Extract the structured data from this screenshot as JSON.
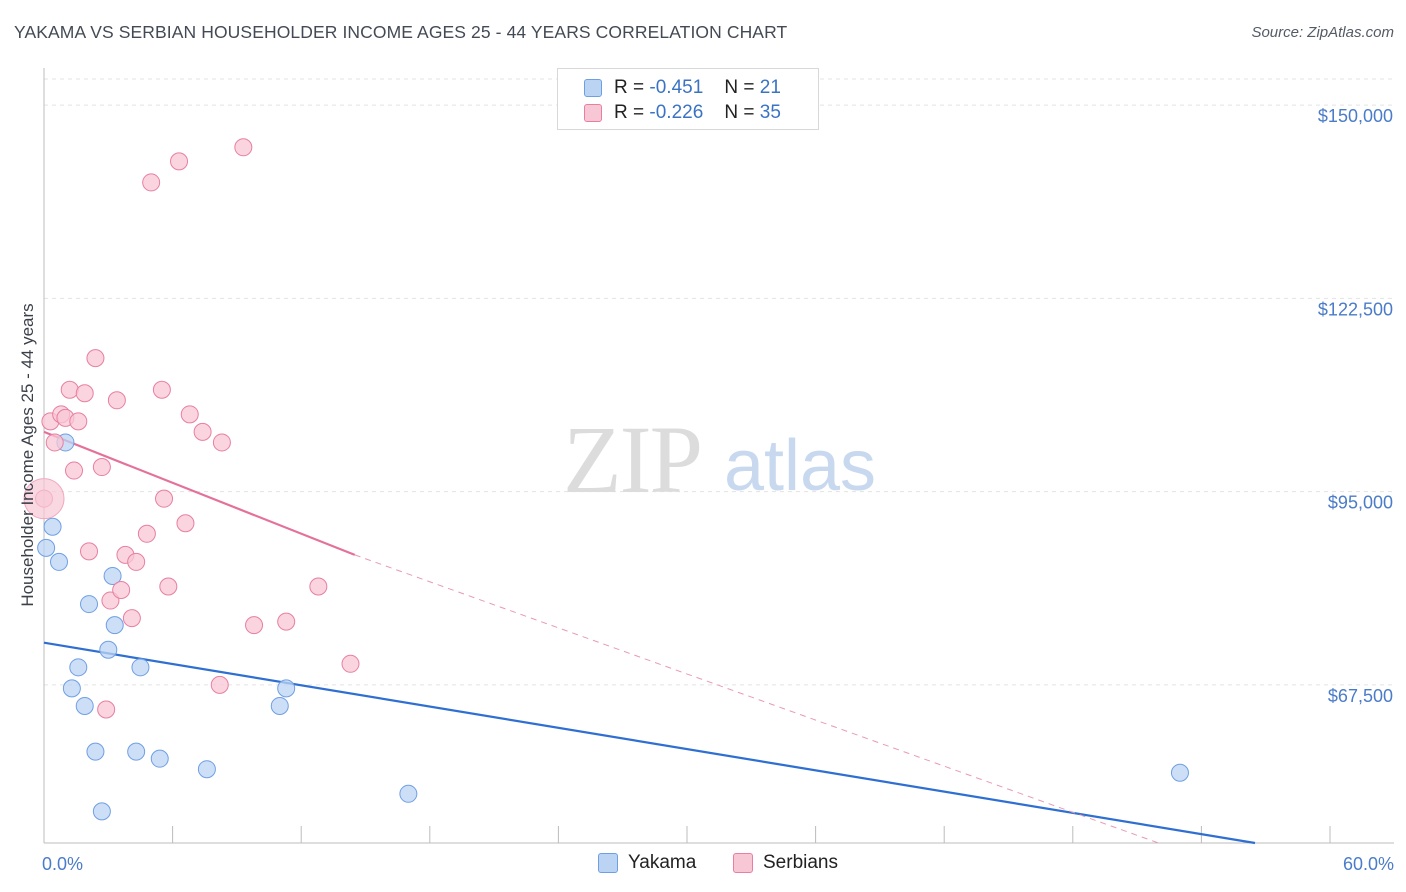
{
  "title": "YAKAMA VS SERBIAN HOUSEHOLDER INCOME AGES 25 - 44 YEARS CORRELATION CHART",
  "source": "Source: ZipAtlas.com",
  "watermark": {
    "zip": "ZIP",
    "atlas": "atlas"
  },
  "legend": {
    "rows": [
      {
        "r_label": "R =",
        "r_value": "-0.451",
        "n_label": "N =",
        "n_value": "21",
        "color": "#a9c8f2"
      },
      {
        "r_label": "R =",
        "r_value": "-0.226",
        "n_label": "N =",
        "n_value": "35",
        "color": "#f5b8cb"
      }
    ]
  },
  "chart_data": {
    "type": "scatter",
    "title": "YAKAMA VS SERBIAN HOUSEHOLDER INCOME AGES 25 - 44 YEARS CORRELATION CHART",
    "xlabel": "",
    "ylabel": "Householder Income Ages 25 - 44 years",
    "xlim": [
      0,
      60
    ],
    "ylim": [
      45000,
      155000
    ],
    "x_tick_labels": [
      "0.0%",
      "60.0%"
    ],
    "y_ticks": [
      67500,
      95000,
      122500,
      150000
    ],
    "y_tick_labels": [
      "$67,500",
      "$95,000",
      "$122,500",
      "$150,000"
    ],
    "grid": "horizontal-dashed",
    "series": [
      {
        "name": "Yakama",
        "color": "#6f9fe3",
        "fill": "#bcd4f4",
        "points": [
          [
            0.1,
            87000
          ],
          [
            0.4,
            90000
          ],
          [
            0.7,
            85000
          ],
          [
            1.0,
            102000
          ],
          [
            1.3,
            67000
          ],
          [
            1.6,
            70000
          ],
          [
            1.9,
            64500
          ],
          [
            2.1,
            79000
          ],
          [
            2.4,
            58000
          ],
          [
            2.7,
            49500
          ],
          [
            3.0,
            72500
          ],
          [
            3.2,
            83000
          ],
          [
            3.3,
            76000
          ],
          [
            4.3,
            58000
          ],
          [
            4.5,
            70000
          ],
          [
            5.4,
            57000
          ],
          [
            7.6,
            55500
          ],
          [
            11.0,
            64500
          ],
          [
            11.3,
            67000
          ],
          [
            17.0,
            52000
          ],
          [
            53.0,
            55000
          ]
        ],
        "trend": [
          [
            0,
            73500
          ],
          [
            56.5,
            45000
          ]
        ]
      },
      {
        "name": "Serbians",
        "color": "#e87fa0",
        "fill": "#f8c7d6",
        "points": [
          [
            0.0,
            94000
          ],
          [
            0.3,
            105000
          ],
          [
            0.5,
            102000
          ],
          [
            0.8,
            106000
          ],
          [
            1.0,
            105500
          ],
          [
            1.2,
            109500
          ],
          [
            1.4,
            98000
          ],
          [
            1.6,
            105000
          ],
          [
            1.9,
            109000
          ],
          [
            2.1,
            86500
          ],
          [
            2.4,
            114000
          ],
          [
            2.7,
            98500
          ],
          [
            2.9,
            64000
          ],
          [
            3.1,
            79500
          ],
          [
            3.4,
            108000
          ],
          [
            3.6,
            81000
          ],
          [
            3.8,
            86000
          ],
          [
            4.1,
            77000
          ],
          [
            4.3,
            85000
          ],
          [
            4.8,
            89000
          ],
          [
            5.0,
            139000
          ],
          [
            5.5,
            109500
          ],
          [
            5.6,
            94000
          ],
          [
            5.8,
            81500
          ],
          [
            6.3,
            142000
          ],
          [
            6.6,
            90500
          ],
          [
            6.8,
            106000
          ],
          [
            7.4,
            103500
          ],
          [
            8.2,
            67500
          ],
          [
            8.3,
            102000
          ],
          [
            9.3,
            144000
          ],
          [
            9.8,
            76000
          ],
          [
            11.3,
            76500
          ],
          [
            12.8,
            81500
          ],
          [
            14.3,
            70500
          ]
        ],
        "trend": [
          [
            0,
            103500
          ],
          [
            14.5,
            86000
          ]
        ],
        "trend_extension": [
          [
            14.5,
            86000
          ],
          [
            52,
            45000
          ]
        ]
      }
    ]
  },
  "bottom_legend": [
    {
      "label": "Yakama",
      "color": "#bcd4f4",
      "border": "#6f9fe3"
    },
    {
      "label": "Serbians",
      "color": "#f8c7d6",
      "border": "#e87fa0"
    }
  ]
}
